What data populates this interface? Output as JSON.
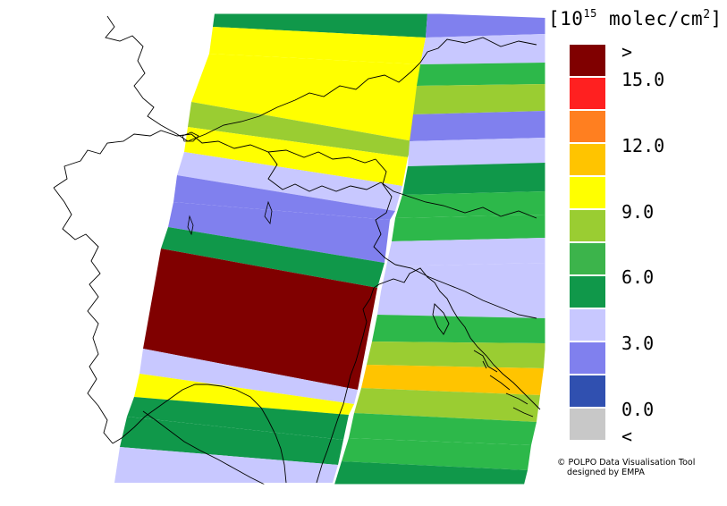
{
  "legend": {
    "unit_prefix": "[10",
    "unit_exponent": "15",
    "unit_middle": " molec/cm",
    "unit_sq": "2",
    "unit_suffix": "]",
    "tick_labels": [
      ">",
      "15.0",
      "12.0",
      "9.0",
      "6.0",
      "3.0",
      "0.0",
      "<"
    ],
    "bins": [
      {
        "color": "#800000"
      },
      {
        "color": "#ff2020"
      },
      {
        "color": "#ff7f20"
      },
      {
        "color": "#ffc400"
      },
      {
        "color": "#ffff00"
      },
      {
        "color": "#9acd32"
      },
      {
        "color": "#3cb44b"
      },
      {
        "color": "#10984a"
      },
      {
        "color": "#c8c8ff"
      },
      {
        "color": "#8080ee"
      },
      {
        "color": "#3050b0"
      },
      {
        "color": "#c8c8c8"
      }
    ]
  },
  "credit": {
    "line1": "© POLPO Data Visualisation Tool",
    "line2": "designed by EMPA"
  },
  "map_colors": {
    "dark_red": "#800000",
    "orange": "#ffc400",
    "yellow": "#ffff00",
    "yellow_green": "#9acd32",
    "green": "#2db84a",
    "dark_green": "#10984a",
    "light_lavender": "#c8c8ff",
    "periwinkle": "#8080ee",
    "border": "#000000"
  }
}
